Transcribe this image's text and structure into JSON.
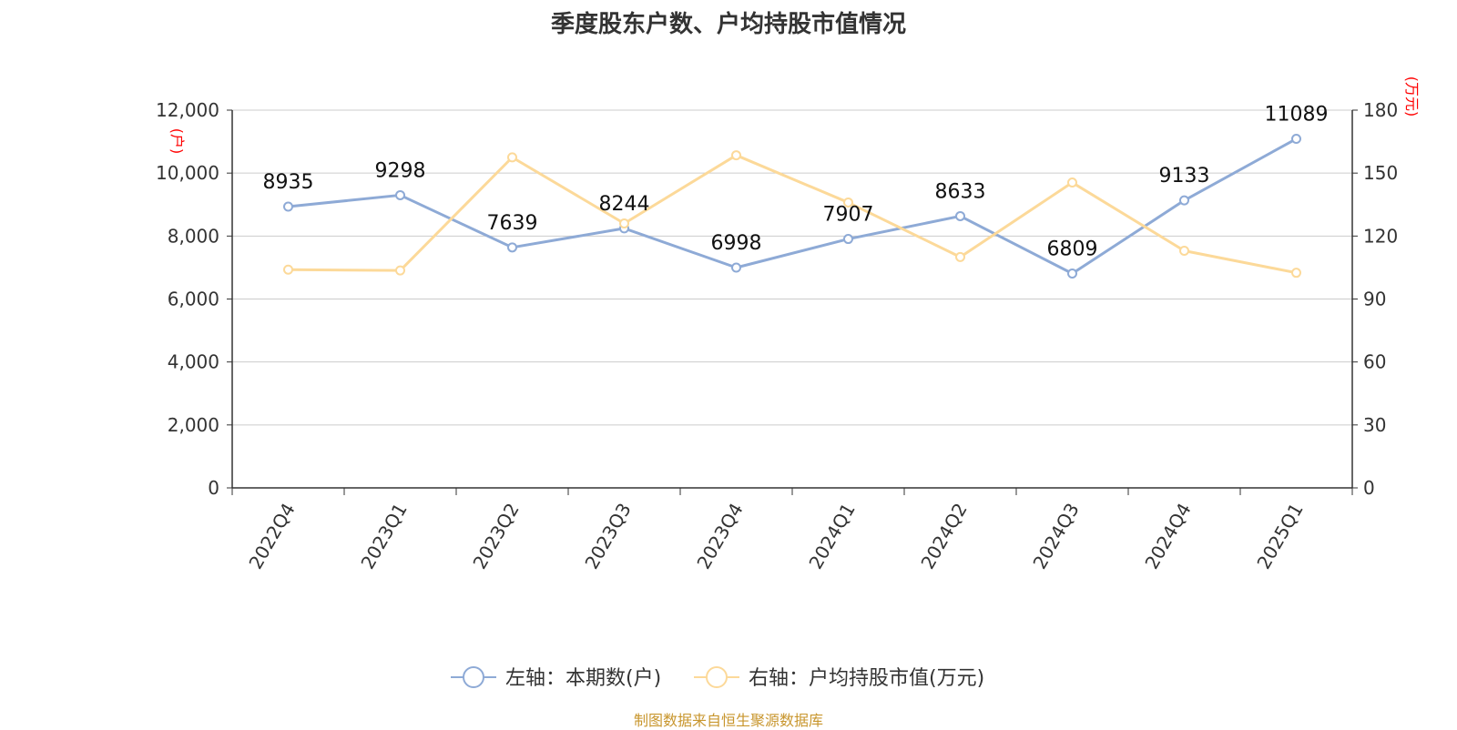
{
  "title": "季度股东户数、户均持股市值情况",
  "source": "制图数据来自恒生聚源数据库",
  "chart_data": {
    "type": "line",
    "categories": [
      "2022Q4",
      "2023Q1",
      "2023Q2",
      "2023Q3",
      "2023Q4",
      "2024Q1",
      "2024Q2",
      "2024Q3",
      "2024Q4",
      "2025Q1"
    ],
    "left_axis": {
      "unit_label": "(户)",
      "ylim": [
        0,
        12000
      ],
      "ticks": [
        "0",
        "2,000",
        "4,000",
        "6,000",
        "8,000",
        "10,000",
        "12,000"
      ]
    },
    "right_axis": {
      "unit_label": "(万元)",
      "ylim": [
        0,
        180
      ],
      "ticks": [
        "0",
        "30",
        "60",
        "90",
        "120",
        "150",
        "180"
      ]
    },
    "grid": true,
    "legend_position": "bottom",
    "series": [
      {
        "name": "左轴：本期数(户)",
        "axis": "left",
        "color": "#8eaad6",
        "values": [
          8935,
          9298,
          7639,
          8244,
          6998,
          7907,
          8633,
          6809,
          9133,
          11089
        ],
        "labels": [
          "8935",
          "9298",
          "7639",
          "8244",
          "6998",
          "7907",
          "8633",
          "6809",
          "9133",
          "11089"
        ]
      },
      {
        "name": "右轴：户均持股市值(万元)",
        "axis": "right",
        "color": "#fcd999",
        "values": [
          104,
          103.6,
          157.5,
          126,
          158.5,
          136,
          110,
          145.5,
          113,
          102.5
        ]
      }
    ]
  }
}
